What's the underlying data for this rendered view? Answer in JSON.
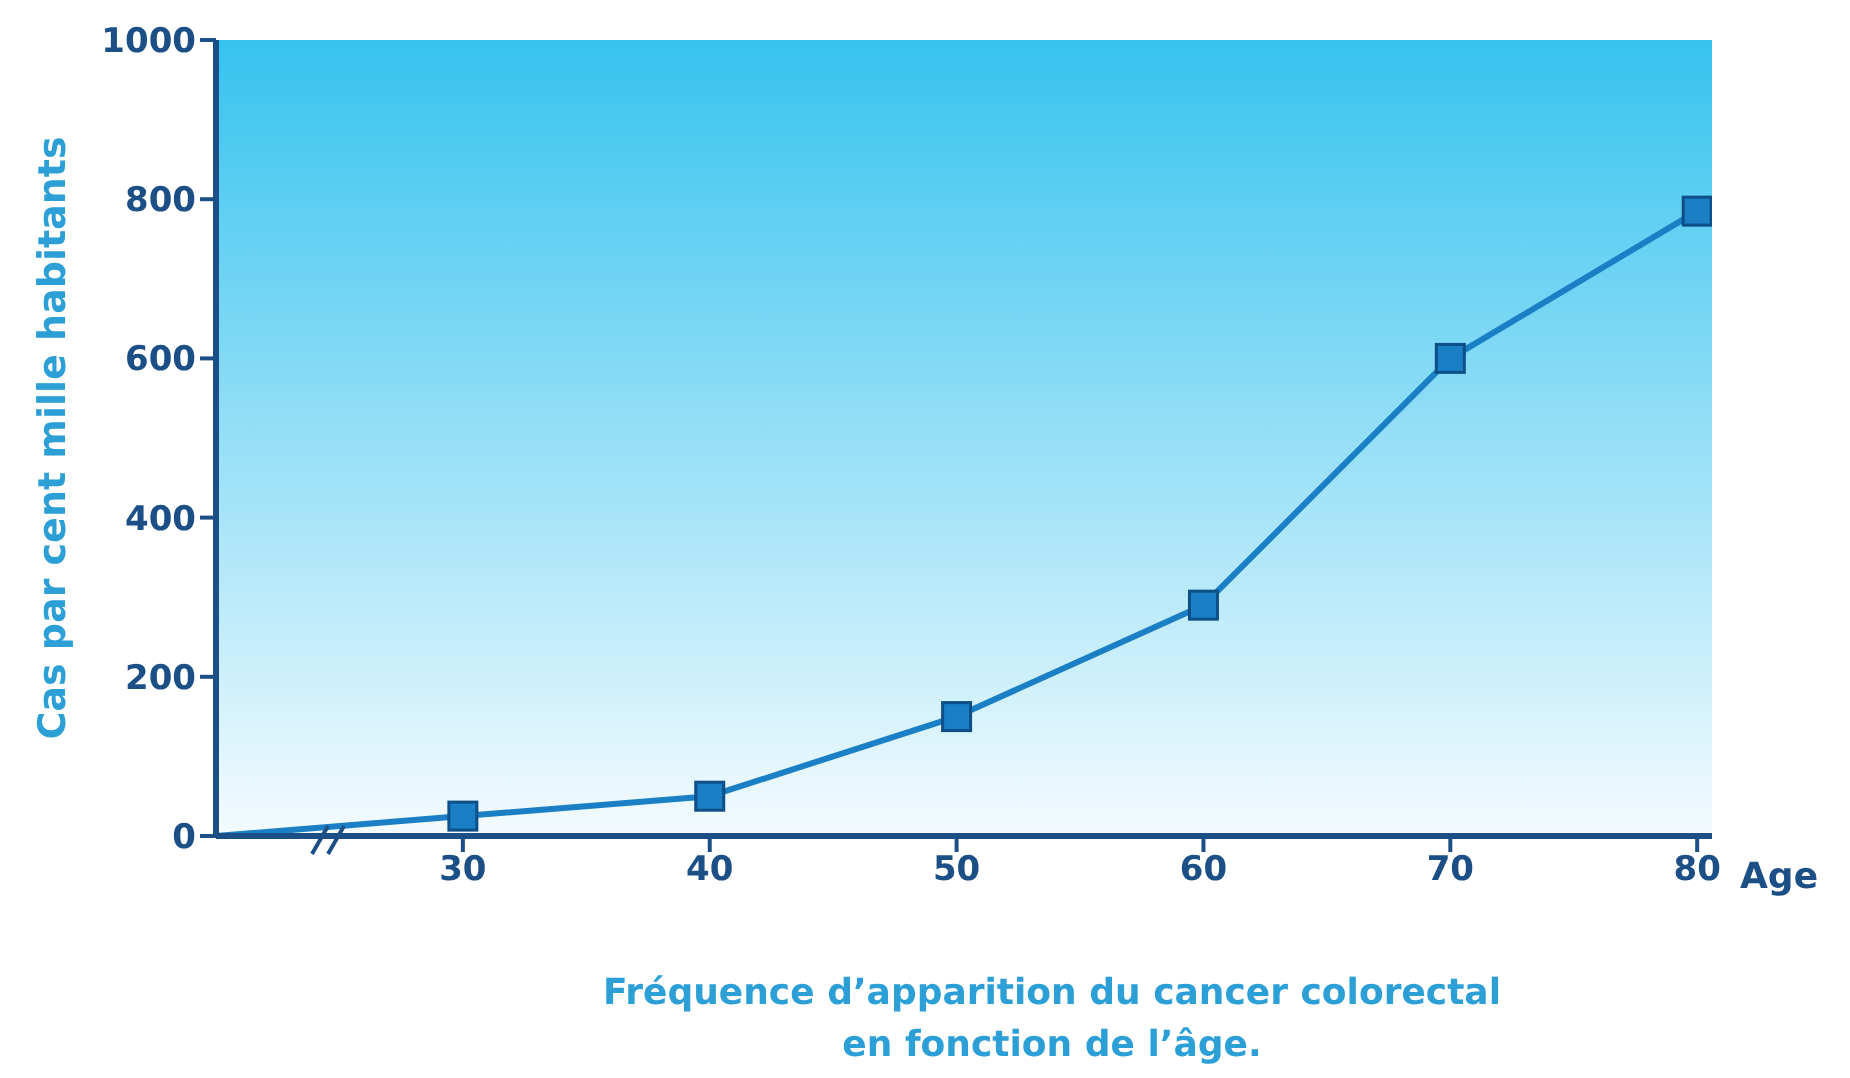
{
  "chart_data": {
    "type": "line",
    "title": "Fréquence d’apparition du cancer colorectal\nen fonction de l’âge.",
    "xlabel": "Age",
    "ylabel": "Cas par cent mille habitants",
    "series": [
      {
        "color": "#1a7fc4",
        "x": [
          20,
          30
        ],
        "values": [
          0,
          25
        ]
      },
      {
        "color": "#1a7fc4",
        "marker": "square",
        "x": [
          30,
          40,
          50,
          60,
          70,
          80
        ],
        "values": [
          25,
          50,
          150,
          290,
          600,
          785
        ]
      }
    ],
    "xlim": [
      20,
      80.6
    ],
    "xticks": [
      30,
      40,
      50,
      60,
      70,
      80
    ],
    "ylim": [
      0,
      1000
    ],
    "yticks": [
      0,
      200,
      400,
      600,
      800,
      1000
    ],
    "grid": false
  }
}
